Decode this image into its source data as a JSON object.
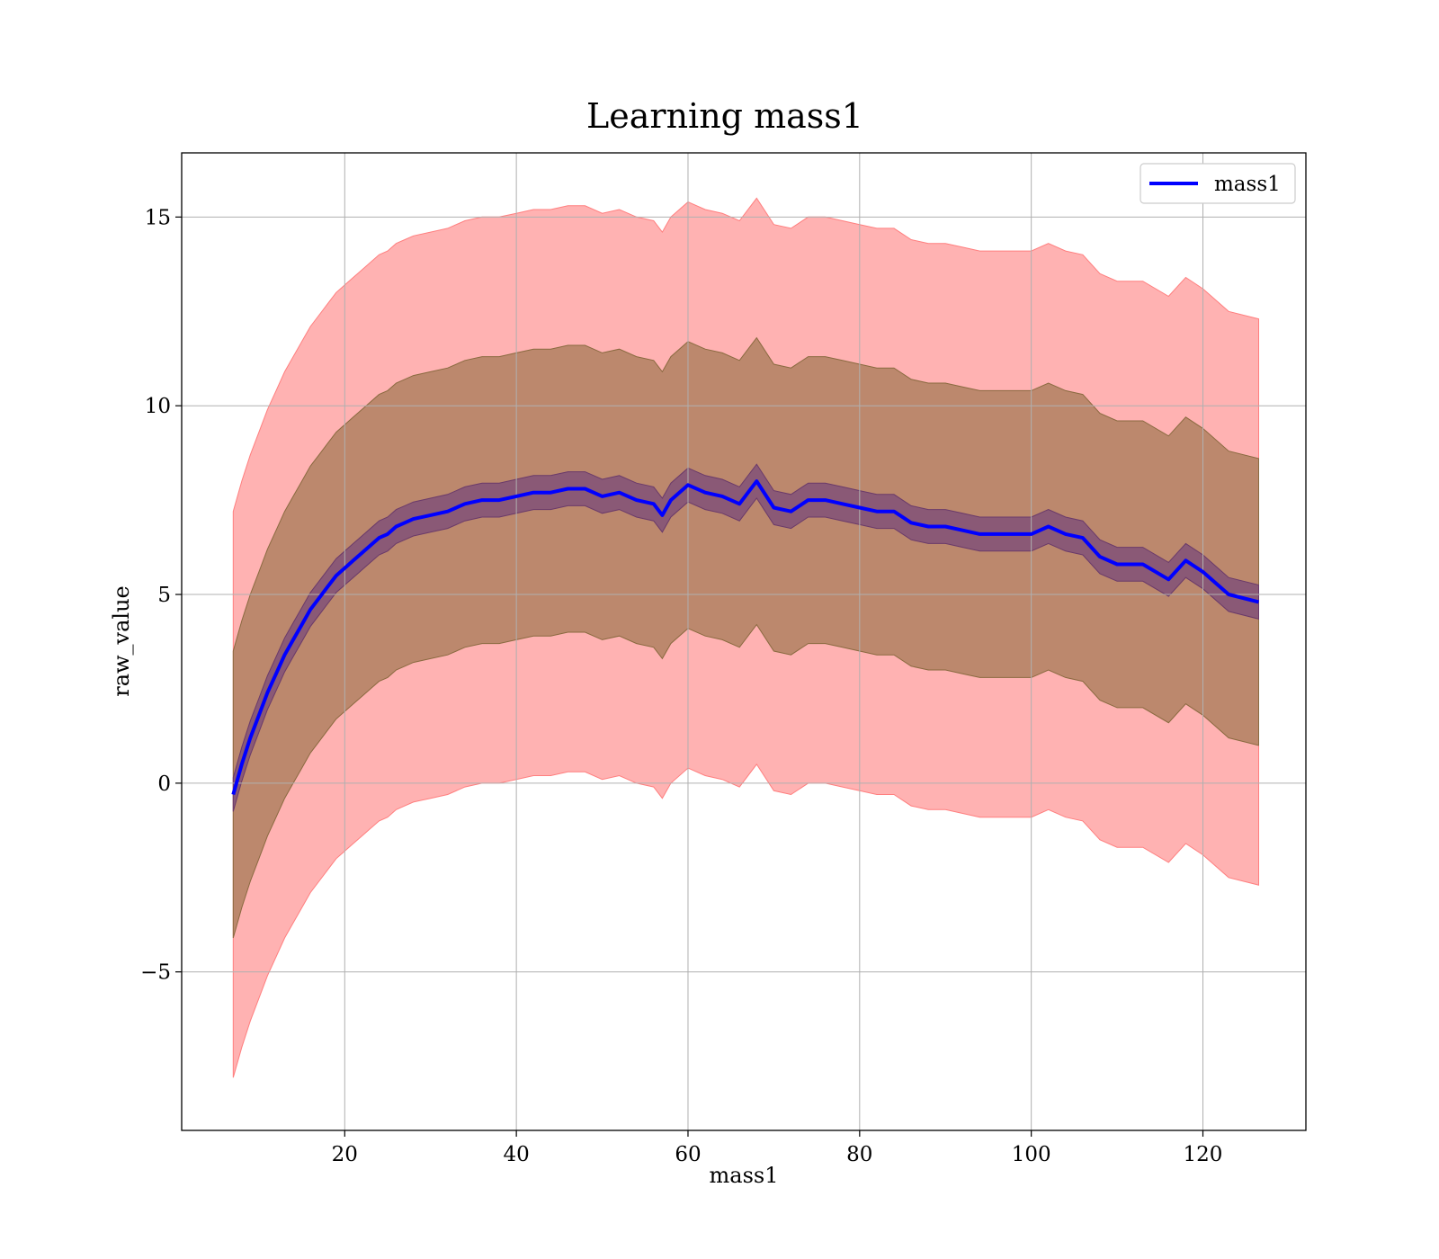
{
  "chart_data": {
    "type": "line",
    "title": "Learning mass1",
    "xlabel": "mass1",
    "ylabel": "raw_value",
    "xlim": [
      1,
      132
    ],
    "ylim": [
      -9.2,
      16.7
    ],
    "x_ticks": [
      20,
      40,
      60,
      80,
      100,
      120
    ],
    "x_tick_labels": [
      "20",
      "40",
      "60",
      "80",
      "100",
      "120"
    ],
    "y_ticks": [
      -5,
      0,
      5,
      10,
      15
    ],
    "y_tick_labels": [
      "−5",
      "0",
      "5",
      "10",
      "15"
    ],
    "grid": true,
    "legend": {
      "position": "top-right",
      "entries": [
        "mass1"
      ]
    },
    "colors": {
      "line": "#0000ff",
      "band_outer": "#ff7f7f",
      "band_mid": "#a67a55",
      "band_inner": "#7a4a7a"
    },
    "series": [
      {
        "name": "mass1",
        "style": "line",
        "x": [
          7,
          8,
          9,
          10,
          11,
          12,
          13,
          14,
          15,
          16,
          17,
          18,
          19,
          20,
          21,
          22,
          23,
          24,
          25,
          26,
          27,
          28,
          30,
          32,
          34,
          36,
          38,
          40,
          42,
          44,
          46,
          48,
          50,
          52,
          54,
          56,
          57,
          58,
          60,
          62,
          64,
          66,
          68,
          70,
          72,
          74,
          76,
          78,
          80,
          82,
          84,
          86,
          88,
          90,
          92,
          94,
          96,
          98,
          100,
          102,
          104,
          106,
          108,
          110,
          113,
          116,
          118,
          120,
          123,
          126.5
        ],
        "mean": [
          -0.3,
          0.5,
          1.2,
          1.8,
          2.4,
          2.9,
          3.4,
          3.8,
          4.2,
          4.6,
          4.9,
          5.2,
          5.5,
          5.7,
          5.9,
          6.1,
          6.3,
          6.5,
          6.6,
          6.8,
          6.9,
          7.0,
          7.1,
          7.2,
          7.4,
          7.5,
          7.5,
          7.6,
          7.7,
          7.7,
          7.8,
          7.8,
          7.6,
          7.7,
          7.5,
          7.4,
          7.1,
          7.5,
          7.9,
          7.7,
          7.6,
          7.4,
          8.0,
          7.3,
          7.2,
          7.5,
          7.5,
          7.4,
          7.3,
          7.2,
          7.2,
          6.9,
          6.8,
          6.8,
          6.7,
          6.6,
          6.6,
          6.6,
          6.6,
          6.8,
          6.6,
          6.5,
          6.0,
          5.8,
          5.8,
          5.4,
          5.9,
          5.6,
          5.0,
          4.8
        ],
        "sd": [
          3.8
        ]
      }
    ],
    "bands": [
      {
        "name": "±1σ",
        "half_width": 0.45
      },
      {
        "name": "±2σ",
        "half_width": 3.8
      },
      {
        "name": "±3σ",
        "half_width": 7.5
      }
    ]
  }
}
